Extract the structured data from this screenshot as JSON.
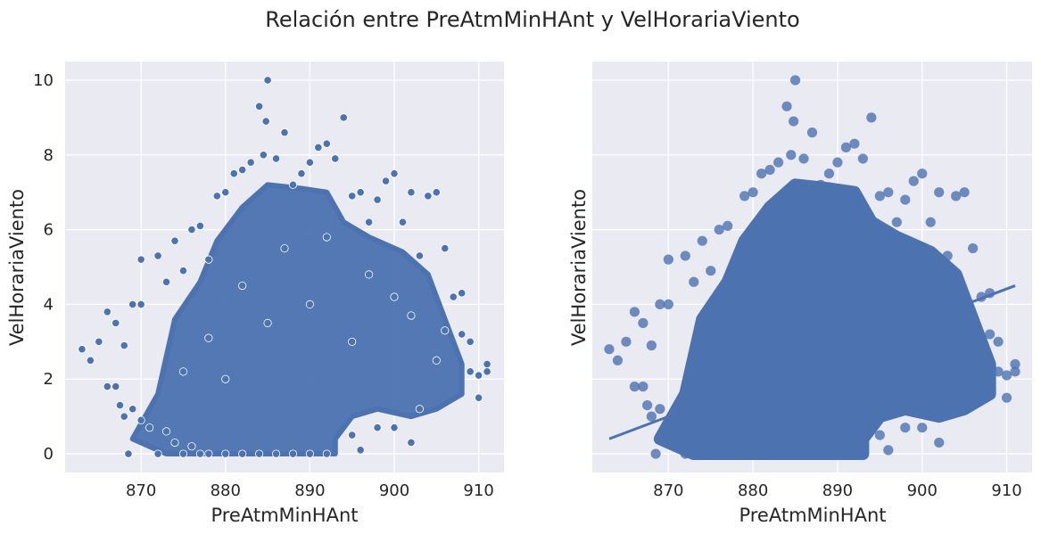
{
  "suptitle": "Relación entre PreAtmMinHAnt y VelHorariaViento",
  "colors": {
    "axes_bg": "#eaeaf2",
    "grid": "#ffffff",
    "point": "#4c72b0",
    "text": "#262626"
  },
  "chart_data": [
    {
      "type": "scatter",
      "xlabel": "PreAtmMinHAnt",
      "ylabel": "VelHorariaViento",
      "xlim": [
        861,
        913
      ],
      "ylim": [
        -0.5,
        10.5
      ],
      "xticks": [
        870,
        880,
        890,
        900,
        910
      ],
      "yticks": [
        0,
        2,
        4,
        6,
        8,
        10
      ],
      "grid": true,
      "marker": "circle-white-edge",
      "points": [
        [
          863,
          2.8
        ],
        [
          864,
          2.5
        ],
        [
          865,
          3.0
        ],
        [
          866,
          3.8
        ],
        [
          866,
          1.8
        ],
        [
          867,
          1.8
        ],
        [
          867,
          3.5
        ],
        [
          867.5,
          1.3
        ],
        [
          868,
          2.9
        ],
        [
          868,
          1.0
        ],
        [
          868.5,
          0.0
        ],
        [
          869,
          4.0
        ],
        [
          869,
          1.2
        ],
        [
          870,
          5.2
        ],
        [
          870,
          4.0
        ],
        [
          870,
          0.9
        ],
        [
          871,
          0.7
        ],
        [
          872,
          5.3
        ],
        [
          873,
          4.6
        ],
        [
          874,
          5.7
        ],
        [
          875,
          4.9
        ],
        [
          876,
          6.0
        ],
        [
          877,
          6.1
        ],
        [
          878,
          5.2
        ],
        [
          879,
          6.9
        ],
        [
          880,
          7.0
        ],
        [
          881,
          7.5
        ],
        [
          882,
          7.6
        ],
        [
          883,
          7.8
        ],
        [
          884,
          9.3
        ],
        [
          884.5,
          8.0
        ],
        [
          885,
          10.0
        ],
        [
          884.8,
          8.9
        ],
        [
          886,
          7.9
        ],
        [
          887,
          8.6
        ],
        [
          888,
          7.2
        ],
        [
          889,
          7.5
        ],
        [
          890,
          7.8
        ],
        [
          891,
          8.2
        ],
        [
          892,
          8.3
        ],
        [
          893,
          7.9
        ],
        [
          894,
          9.0
        ],
        [
          895,
          6.9
        ],
        [
          896,
          7.0
        ],
        [
          897,
          6.2
        ],
        [
          898,
          6.8
        ],
        [
          899,
          7.3
        ],
        [
          900,
          7.5
        ],
        [
          901,
          6.2
        ],
        [
          902,
          7.0
        ],
        [
          903,
          5.3
        ],
        [
          904,
          6.9
        ],
        [
          905,
          7.0
        ],
        [
          906,
          5.5
        ],
        [
          907,
          4.2
        ],
        [
          908,
          3.2
        ],
        [
          909,
          2.2
        ],
        [
          910,
          1.5
        ],
        [
          911,
          2.4
        ],
        [
          911,
          2.2
        ],
        [
          910,
          2.1
        ],
        [
          909,
          3.0
        ],
        [
          908,
          4.3
        ],
        [
          903,
          1.2
        ],
        [
          902,
          0.3
        ],
        [
          898,
          0.7
        ],
        [
          900,
          0.7
        ],
        [
          896,
          0.1
        ],
        [
          895,
          0.5
        ],
        [
          877,
          0.0
        ],
        [
          872,
          0.0
        ],
        [
          873,
          0.6
        ],
        [
          874,
          0.3
        ],
        [
          875,
          0.0
        ],
        [
          876,
          0.2
        ],
        [
          878,
          0.0
        ],
        [
          880,
          0.0
        ],
        [
          882,
          0.0
        ],
        [
          884,
          0.0
        ],
        [
          886,
          0.0
        ],
        [
          888,
          0.0
        ],
        [
          890,
          0.0
        ],
        [
          892,
          0.0
        ],
        [
          880,
          2.0
        ],
        [
          885,
          3.5
        ],
        [
          890,
          4.0
        ],
        [
          895,
          3.0
        ],
        [
          900,
          4.2
        ],
        [
          905,
          2.5
        ],
        [
          875,
          2.2
        ],
        [
          878,
          3.1
        ],
        [
          882,
          4.5
        ],
        [
          887,
          5.5
        ],
        [
          892,
          5.8
        ],
        [
          897,
          4.8
        ],
        [
          902,
          3.7
        ],
        [
          906,
          3.3
        ]
      ],
      "cloud_envelope": [
        [
          869,
          0.4
        ],
        [
          872,
          1.6
        ],
        [
          874,
          3.6
        ],
        [
          877,
          4.6
        ],
        [
          879,
          5.7
        ],
        [
          882,
          6.6
        ],
        [
          885,
          7.2
        ],
        [
          889,
          7.1
        ],
        [
          892,
          7.0
        ],
        [
          894,
          6.2
        ],
        [
          897,
          5.8
        ],
        [
          901,
          5.4
        ],
        [
          904,
          4.8
        ],
        [
          906,
          3.6
        ],
        [
          908,
          2.4
        ],
        [
          908,
          1.6
        ],
        [
          905,
          1.2
        ],
        [
          902,
          1.0
        ],
        [
          898,
          1.2
        ],
        [
          895,
          1.0
        ],
        [
          893,
          0.4
        ],
        [
          893,
          0.0
        ],
        [
          873,
          0.0
        ],
        [
          870,
          0.3
        ]
      ]
    },
    {
      "type": "scatter",
      "xlabel": "PreAtmMinHAnt",
      "ylabel": "VelHorariaViento",
      "xlim": [
        861,
        913
      ],
      "ylim": [
        -0.5,
        10.5
      ],
      "xticks": [
        870,
        880,
        890,
        900,
        910
      ],
      "yticks": [
        0,
        2,
        4,
        6,
        8,
        10
      ],
      "show_ytick_labels": false,
      "grid": true,
      "marker": "circle-alpha",
      "regression_line": {
        "x": [
          863,
          911
        ],
        "y": [
          0.4,
          4.5
        ]
      },
      "uses_points_of_panel": 0
    }
  ]
}
